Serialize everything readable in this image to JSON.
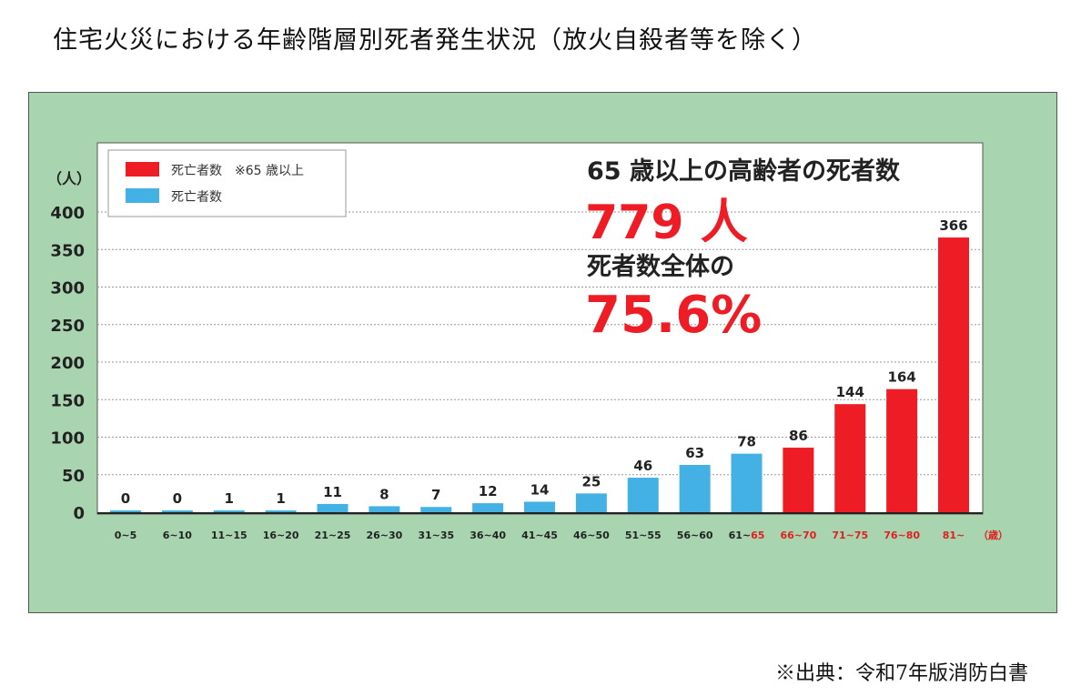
{
  "title": "住宅火災における年齢階層別死者発生状況（放火自殺者等を除く）",
  "source": "※出典：令和7年版消防白書",
  "colors": {
    "red": "#ee1c25",
    "blue": "#44b1e4",
    "panel": "#a8d5b0"
  },
  "chart_data": {
    "type": "bar",
    "ylabel": "（人）",
    "xunit": "（歳）",
    "ylim": [
      0,
      400
    ],
    "yticks": [
      0,
      50,
      100,
      150,
      200,
      250,
      300,
      350,
      400
    ],
    "grid": true,
    "legend_position": "top-left",
    "legend": [
      {
        "label": "死亡者数　※65 歳以上",
        "color": "#ee1c25"
      },
      {
        "label": "死亡者数",
        "color": "#44b1e4"
      }
    ],
    "categories": [
      "0~5",
      "6~10",
      "11~15",
      "16~20",
      "21~25",
      "26~30",
      "31~35",
      "36~40",
      "41~45",
      "46~50",
      "51~55",
      "56~60",
      "61~65",
      "66~70",
      "71~75",
      "76~80",
      "81~"
    ],
    "categories_fixed": [
      "0~5",
      "6~10",
      "11~15",
      "16~20",
      "21~25",
      "26~30",
      "31~35",
      "36~40",
      "41~45",
      "46~50",
      "51~55",
      "56~60",
      "61~65",
      "66~70",
      "71~75",
      "76~80",
      "81~"
    ],
    "values": [
      0,
      0,
      1,
      1,
      11,
      8,
      7,
      12,
      14,
      25,
      46,
      63,
      78,
      86,
      144,
      164,
      366
    ],
    "elderly": [
      false,
      false,
      false,
      false,
      false,
      false,
      false,
      false,
      false,
      false,
      false,
      false,
      false,
      true,
      true,
      true,
      true
    ],
    "annotations": {
      "line1": "65 歳以上の高齢者の死者数",
      "line2": "779 人",
      "line3": "死者数全体の",
      "line4": "75.6%"
    }
  }
}
